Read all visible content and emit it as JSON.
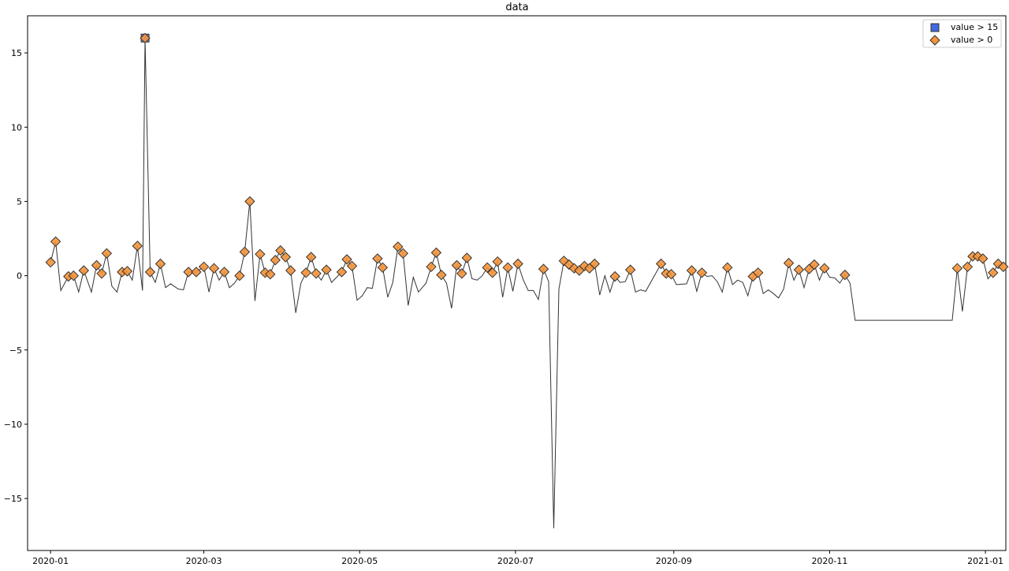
{
  "chart_data": {
    "type": "line",
    "title": "data",
    "xlabel": "",
    "ylabel": "",
    "x_axis_type": "date",
    "xlim": [
      "2019-12-23",
      "2021-01-09"
    ],
    "ylim": [
      -18.5,
      17.5
    ],
    "x_ticks": [
      "2020-01-01",
      "2020-03-01",
      "2020-05-01",
      "2020-07-01",
      "2020-09-01",
      "2020-11-01",
      "2021-01-01"
    ],
    "x_tick_labels": [
      "2020-01",
      "2020-03",
      "2020-05",
      "2020-07",
      "2020-09",
      "2020-11",
      "2021-01"
    ],
    "y_ticks": [
      -15,
      -10,
      -5,
      0,
      5,
      10,
      15
    ],
    "y_tick_labels": [
      "−15",
      "−10",
      "−5",
      "0",
      "5",
      "10",
      "15"
    ],
    "grid": false,
    "legend_position": "top-right",
    "legend": [
      {
        "label": "value > 15",
        "marker": "square",
        "color": "#4169e1"
      },
      {
        "label": "value > 0",
        "marker": "diamond",
        "color": "#f4933a"
      }
    ],
    "line_color": "#333333",
    "series": [
      {
        "values": [
          [
            "2020-01-01",
            0.9
          ],
          [
            "2020-01-03",
            2.3
          ],
          [
            "2020-01-05",
            -1.0
          ],
          [
            "2020-01-08",
            -0.05
          ],
          [
            "2020-01-10",
            0.0
          ],
          [
            "2020-01-12",
            -1.1
          ],
          [
            "2020-01-14",
            0.35
          ],
          [
            "2020-01-17",
            -1.1
          ],
          [
            "2020-01-19",
            0.7
          ],
          [
            "2020-01-21",
            0.15
          ],
          [
            "2020-01-23",
            1.5
          ],
          [
            "2020-01-25",
            -0.7
          ],
          [
            "2020-01-27",
            -1.1
          ],
          [
            "2020-01-29",
            0.25
          ],
          [
            "2020-01-31",
            0.3
          ],
          [
            "2020-02-02",
            -0.3
          ],
          [
            "2020-02-04",
            2.0
          ],
          [
            "2020-02-06",
            -1.0
          ],
          [
            "2020-02-07",
            16.0
          ],
          [
            "2020-02-09",
            0.25
          ],
          [
            "2020-02-11",
            -0.45
          ],
          [
            "2020-02-13",
            0.8
          ],
          [
            "2020-02-15",
            -0.8
          ],
          [
            "2020-02-17",
            -0.55
          ],
          [
            "2020-02-20",
            -0.9
          ],
          [
            "2020-02-22",
            -0.95
          ],
          [
            "2020-02-24",
            0.25
          ],
          [
            "2020-02-27",
            0.25
          ],
          [
            "2020-03-01",
            0.6
          ],
          [
            "2020-03-03",
            -1.1
          ],
          [
            "2020-03-05",
            0.5
          ],
          [
            "2020-03-07",
            -0.3
          ],
          [
            "2020-03-09",
            0.25
          ],
          [
            "2020-03-11",
            -0.8
          ],
          [
            "2020-03-13",
            -0.5
          ],
          [
            "2020-03-15",
            0.0
          ],
          [
            "2020-03-17",
            1.6
          ],
          [
            "2020-03-19",
            5.0
          ],
          [
            "2020-03-21",
            -1.7
          ],
          [
            "2020-03-23",
            1.45
          ],
          [
            "2020-03-25",
            0.2
          ],
          [
            "2020-03-27",
            0.1
          ],
          [
            "2020-03-29",
            1.05
          ],
          [
            "2020-03-31",
            1.7
          ],
          [
            "2020-04-02",
            1.25
          ],
          [
            "2020-04-04",
            0.35
          ],
          [
            "2020-04-06",
            -2.5
          ],
          [
            "2020-04-08",
            -0.5
          ],
          [
            "2020-04-10",
            0.2
          ],
          [
            "2020-04-12",
            1.25
          ],
          [
            "2020-04-14",
            0.15
          ],
          [
            "2020-04-16",
            -0.3
          ],
          [
            "2020-04-18",
            0.4
          ],
          [
            "2020-04-20",
            -0.45
          ],
          [
            "2020-04-24",
            0.25
          ],
          [
            "2020-04-26",
            1.1
          ],
          [
            "2020-04-28",
            0.65
          ],
          [
            "2020-04-30",
            -1.65
          ],
          [
            "2020-05-02",
            -1.35
          ],
          [
            "2020-05-04",
            -0.8
          ],
          [
            "2020-05-06",
            -0.85
          ],
          [
            "2020-05-08",
            1.15
          ],
          [
            "2020-05-10",
            0.55
          ],
          [
            "2020-05-12",
            -1.45
          ],
          [
            "2020-05-14",
            -0.45
          ],
          [
            "2020-05-16",
            1.95
          ],
          [
            "2020-05-18",
            1.5
          ],
          [
            "2020-05-20",
            -2.0
          ],
          [
            "2020-05-22",
            -0.1
          ],
          [
            "2020-05-24",
            -1.1
          ],
          [
            "2020-05-27",
            -0.5
          ],
          [
            "2020-05-29",
            0.6
          ],
          [
            "2020-05-31",
            1.55
          ],
          [
            "2020-06-02",
            0.05
          ],
          [
            "2020-06-04",
            -0.5
          ],
          [
            "2020-06-06",
            -2.2
          ],
          [
            "2020-06-08",
            0.7
          ],
          [
            "2020-06-10",
            0.15
          ],
          [
            "2020-06-12",
            1.2
          ],
          [
            "2020-06-14",
            -0.2
          ],
          [
            "2020-06-16",
            -0.3
          ],
          [
            "2020-06-18",
            0.0
          ],
          [
            "2020-06-20",
            0.55
          ],
          [
            "2020-06-22",
            0.2
          ],
          [
            "2020-06-24",
            0.95
          ],
          [
            "2020-06-26",
            -1.45
          ],
          [
            "2020-06-28",
            0.55
          ],
          [
            "2020-06-30",
            -1.05
          ],
          [
            "2020-07-02",
            0.8
          ],
          [
            "2020-07-04",
            -0.25
          ],
          [
            "2020-07-06",
            -1.0
          ],
          [
            "2020-07-08",
            -1.0
          ],
          [
            "2020-07-10",
            -1.6
          ],
          [
            "2020-07-12",
            0.45
          ],
          [
            "2020-07-14",
            -0.4
          ],
          [
            "2020-07-16",
            -17.0
          ],
          [
            "2020-07-18",
            -0.9
          ],
          [
            "2020-07-20",
            1.0
          ],
          [
            "2020-07-22",
            0.75
          ],
          [
            "2020-07-24",
            0.5
          ],
          [
            "2020-07-26",
            0.35
          ],
          [
            "2020-07-28",
            0.65
          ],
          [
            "2020-07-30",
            0.5
          ],
          [
            "2020-08-01",
            0.8
          ],
          [
            "2020-08-03",
            -1.3
          ],
          [
            "2020-08-05",
            0.0
          ],
          [
            "2020-08-07",
            -1.1
          ],
          [
            "2020-08-09",
            -0.05
          ],
          [
            "2020-08-11",
            -0.45
          ],
          [
            "2020-08-13",
            -0.4
          ],
          [
            "2020-08-15",
            0.4
          ],
          [
            "2020-08-17",
            -1.1
          ],
          [
            "2020-08-19",
            -0.95
          ],
          [
            "2020-08-21",
            -1.05
          ],
          [
            "2020-08-27",
            0.8
          ],
          [
            "2020-08-29",
            0.15
          ],
          [
            "2020-08-31",
            0.1
          ],
          [
            "2020-09-02",
            -0.6
          ],
          [
            "2020-09-06",
            -0.55
          ],
          [
            "2020-09-08",
            0.35
          ],
          [
            "2020-09-10",
            -1.05
          ],
          [
            "2020-09-12",
            0.2
          ],
          [
            "2020-09-14",
            -0.05
          ],
          [
            "2020-09-16",
            0.0
          ],
          [
            "2020-09-18",
            -0.4
          ],
          [
            "2020-09-20",
            -1.1
          ],
          [
            "2020-09-22",
            0.55
          ],
          [
            "2020-09-24",
            -0.6
          ],
          [
            "2020-09-26",
            -0.3
          ],
          [
            "2020-09-28",
            -0.45
          ],
          [
            "2020-09-30",
            -1.35
          ],
          [
            "2020-10-02",
            -0.05
          ],
          [
            "2020-10-04",
            0.2
          ],
          [
            "2020-10-06",
            -1.2
          ],
          [
            "2020-10-08",
            -0.95
          ],
          [
            "2020-10-10",
            -1.2
          ],
          [
            "2020-10-12",
            -1.5
          ],
          [
            "2020-10-14",
            -0.9
          ],
          [
            "2020-10-16",
            0.85
          ],
          [
            "2020-10-18",
            -0.3
          ],
          [
            "2020-10-20",
            0.4
          ],
          [
            "2020-10-22",
            -0.8
          ],
          [
            "2020-10-24",
            0.45
          ],
          [
            "2020-10-26",
            0.75
          ],
          [
            "2020-10-28",
            -0.3
          ],
          [
            "2020-10-30",
            0.5
          ],
          [
            "2020-11-01",
            -0.1
          ],
          [
            "2020-11-03",
            -0.15
          ],
          [
            "2020-11-05",
            -0.5
          ],
          [
            "2020-11-07",
            0.05
          ],
          [
            "2020-11-09",
            -0.5
          ],
          [
            "2020-11-11",
            -3.0
          ],
          [
            "2020-12-19",
            -3.0
          ],
          [
            "2020-12-21",
            0.5
          ],
          [
            "2020-12-23",
            -2.4
          ],
          [
            "2020-12-25",
            0.6
          ],
          [
            "2020-12-27",
            1.3
          ],
          [
            "2020-12-29",
            1.3
          ],
          [
            "2020-12-31",
            1.15
          ],
          [
            "2021-01-02",
            -0.2
          ],
          [
            "2021-01-04",
            0.2
          ],
          [
            "2021-01-06",
            0.8
          ],
          [
            "2021-01-08",
            0.6
          ]
        ]
      }
    ],
    "markers_gt_15": [
      [
        "2020-02-07",
        16.0
      ]
    ],
    "markers_gt_0": [
      [
        "2020-01-01",
        0.9
      ],
      [
        "2020-01-03",
        2.3
      ],
      [
        "2020-01-08",
        -0.05
      ],
      [
        "2020-01-10",
        0.0
      ],
      [
        "2020-01-14",
        0.35
      ],
      [
        "2020-01-19",
        0.7
      ],
      [
        "2020-01-21",
        0.15
      ],
      [
        "2020-01-23",
        1.5
      ],
      [
        "2020-01-29",
        0.25
      ],
      [
        "2020-01-31",
        0.3
      ],
      [
        "2020-02-04",
        2.0
      ],
      [
        "2020-02-07",
        16.0
      ],
      [
        "2020-02-09",
        0.25
      ],
      [
        "2020-02-13",
        0.8
      ],
      [
        "2020-02-24",
        0.25
      ],
      [
        "2020-02-27",
        0.25
      ],
      [
        "2020-03-01",
        0.6
      ],
      [
        "2020-03-05",
        0.5
      ],
      [
        "2020-03-09",
        0.25
      ],
      [
        "2020-03-15",
        0.0
      ],
      [
        "2020-03-17",
        1.6
      ],
      [
        "2020-03-19",
        5.0
      ],
      [
        "2020-03-23",
        1.45
      ],
      [
        "2020-03-25",
        0.2
      ],
      [
        "2020-03-27",
        0.1
      ],
      [
        "2020-03-29",
        1.05
      ],
      [
        "2020-03-31",
        1.7
      ],
      [
        "2020-04-02",
        1.25
      ],
      [
        "2020-04-04",
        0.35
      ],
      [
        "2020-04-10",
        0.2
      ],
      [
        "2020-04-12",
        1.25
      ],
      [
        "2020-04-14",
        0.15
      ],
      [
        "2020-04-18",
        0.4
      ],
      [
        "2020-04-24",
        0.25
      ],
      [
        "2020-04-26",
        1.1
      ],
      [
        "2020-04-28",
        0.65
      ],
      [
        "2020-05-08",
        1.15
      ],
      [
        "2020-05-10",
        0.55
      ],
      [
        "2020-05-16",
        1.95
      ],
      [
        "2020-05-18",
        1.5
      ],
      [
        "2020-05-29",
        0.6
      ],
      [
        "2020-05-31",
        1.55
      ],
      [
        "2020-06-02",
        0.05
      ],
      [
        "2020-06-08",
        0.7
      ],
      [
        "2020-06-10",
        0.15
      ],
      [
        "2020-06-12",
        1.2
      ],
      [
        "2020-06-20",
        0.55
      ],
      [
        "2020-06-22",
        0.2
      ],
      [
        "2020-06-24",
        0.95
      ],
      [
        "2020-06-28",
        0.55
      ],
      [
        "2020-07-02",
        0.8
      ],
      [
        "2020-07-12",
        0.45
      ],
      [
        "2020-07-20",
        1.0
      ],
      [
        "2020-07-22",
        0.75
      ],
      [
        "2020-07-24",
        0.5
      ],
      [
        "2020-07-26",
        0.35
      ],
      [
        "2020-07-28",
        0.65
      ],
      [
        "2020-07-30",
        0.5
      ],
      [
        "2020-08-01",
        0.8
      ],
      [
        "2020-08-09",
        -0.05
      ],
      [
        "2020-08-15",
        0.4
      ],
      [
        "2020-08-27",
        0.8
      ],
      [
        "2020-08-29",
        0.15
      ],
      [
        "2020-08-31",
        0.1
      ],
      [
        "2020-09-08",
        0.35
      ],
      [
        "2020-09-12",
        0.2
      ],
      [
        "2020-09-22",
        0.55
      ],
      [
        "2020-10-02",
        -0.05
      ],
      [
        "2020-10-04",
        0.2
      ],
      [
        "2020-10-16",
        0.85
      ],
      [
        "2020-10-20",
        0.4
      ],
      [
        "2020-10-24",
        0.45
      ],
      [
        "2020-10-26",
        0.75
      ],
      [
        "2020-10-30",
        0.5
      ],
      [
        "2020-11-07",
        0.05
      ],
      [
        "2020-12-21",
        0.5
      ],
      [
        "2020-12-25",
        0.6
      ],
      [
        "2020-12-27",
        1.3
      ],
      [
        "2020-12-29",
        1.3
      ],
      [
        "2020-12-31",
        1.15
      ],
      [
        "2021-01-04",
        0.2
      ],
      [
        "2021-01-06",
        0.8
      ],
      [
        "2021-01-08",
        0.6
      ]
    ]
  }
}
